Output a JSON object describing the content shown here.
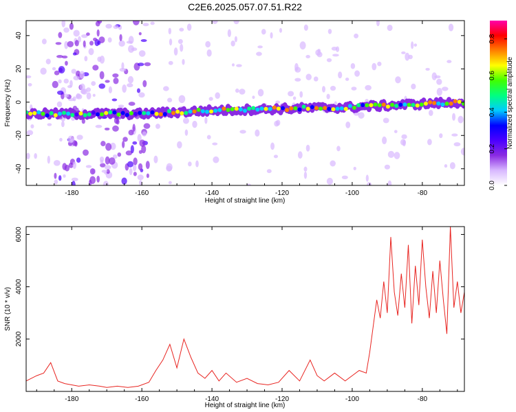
{
  "title": "C2E6.2025.057.07.51.R22",
  "chart_data": [
    {
      "type": "heatmap",
      "xlabel": "Height of straight line (km)",
      "ylabel": "Frequency (Hz)",
      "xlim": [
        -193,
        -68
      ],
      "ylim": [
        -50,
        49
      ],
      "xticks": [
        -180,
        -160,
        -140,
        -120,
        -100,
        -80
      ],
      "yticks": [
        -40,
        -20,
        0,
        20,
        40
      ],
      "colorbar": {
        "label": "Normalized spectral amplitude",
        "range": [
          0,
          0.9
        ],
        "ticks": [
          "0.0",
          "0.2",
          "0.4",
          "0.6",
          "0.8"
        ],
        "colormap": [
          "#ffffff",
          "#d8b8ff",
          "#8a2be2",
          "#4b00ff",
          "#0000ff",
          "#00ccff",
          "#00ff80",
          "#40ff00",
          "#ffff00",
          "#ff8000",
          "#ff0000",
          "#ff00aa"
        ]
      },
      "ridge": {
        "description_points": [
          {
            "x": -193,
            "y": -7
          },
          {
            "x": -160,
            "y": -7
          },
          {
            "x": -140,
            "y": -5
          },
          {
            "x": -120,
            "y": -4
          },
          {
            "x": -100,
            "y": -3
          },
          {
            "x": -80,
            "y": -1
          },
          {
            "x": -68,
            "y": 0
          }
        ]
      },
      "grid": false
    },
    {
      "type": "line",
      "xlabel": "Height of straight line (km)",
      "ylabel": "SNR (10 * v/v)",
      "xlim": [
        -193,
        -68
      ],
      "ylim": [
        0,
        6300
      ],
      "xticks": [
        -180,
        -160,
        -140,
        -120,
        -100,
        -80
      ],
      "yticks": [
        2000,
        4000,
        6000
      ],
      "series": [
        {
          "color": "#e8231f",
          "x": [
            -193,
            -190,
            -188,
            -186,
            -184,
            -182,
            -180,
            -178,
            -175,
            -172,
            -170,
            -167,
            -164,
            -161,
            -158,
            -156,
            -154,
            -152,
            -150,
            -148,
            -146,
            -144,
            -142,
            -140,
            -138,
            -136,
            -133,
            -130,
            -127,
            -124,
            -121,
            -118,
            -115,
            -112,
            -110,
            -108,
            -105,
            -102,
            -100,
            -98,
            -96,
            -95,
            -94,
            -93,
            -92,
            -91,
            -90,
            -89,
            -88,
            -87,
            -86,
            -85,
            -84,
            -83,
            -82,
            -81,
            -80,
            -79,
            -78,
            -77,
            -76,
            -75,
            -74,
            -73,
            -72,
            -71,
            -70,
            -69,
            -68
          ],
          "y": [
            400,
            600,
            700,
            1100,
            400,
            300,
            250,
            200,
            250,
            200,
            150,
            200,
            150,
            200,
            350,
            800,
            1200,
            1800,
            900,
            2000,
            1300,
            700,
            500,
            800,
            400,
            700,
            350,
            500,
            300,
            250,
            350,
            800,
            400,
            1200,
            600,
            400,
            700,
            400,
            600,
            800,
            700,
            1500,
            2500,
            3500,
            2800,
            4200,
            3000,
            5900,
            3800,
            2900,
            4500,
            3200,
            5600,
            2600,
            4800,
            3300,
            5800,
            4000,
            2800,
            4600,
            3000,
            5000,
            3500,
            2200,
            6300,
            3200,
            4200,
            3000,
            3800
          ]
        }
      ],
      "grid": false
    }
  ]
}
